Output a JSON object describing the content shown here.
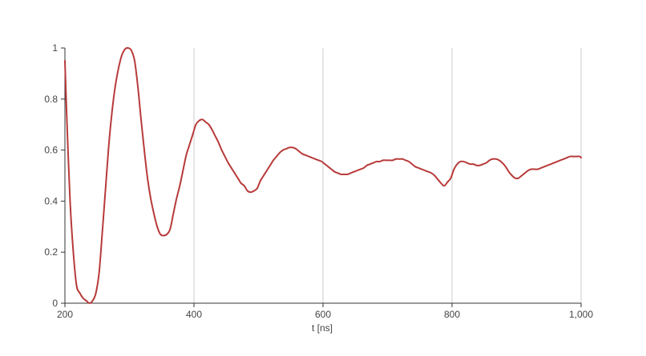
{
  "chart_data": {
    "type": "line",
    "title": "",
    "xlabel": "t [ns]",
    "ylabel": "",
    "xlim": [
      200,
      1000
    ],
    "ylim": [
      0,
      1
    ],
    "x_ticks": [
      200,
      400,
      600,
      800,
      1000
    ],
    "x_tick_labels": [
      "200",
      "400",
      "600",
      "800",
      "1,000"
    ],
    "y_ticks": [
      0,
      0.2,
      0.4,
      0.6,
      0.8,
      1
    ],
    "y_tick_labels": [
      "0",
      "0.2",
      "0.4",
      "0.6",
      "0.8",
      "1"
    ],
    "vertical_grid": true,
    "horizontal_grid": false,
    "line_color": "#b83a3a",
    "grid_color": "#cccccc",
    "axis_color": "#333333",
    "series": [
      {
        "name": "",
        "x": [
          200,
          203,
          208,
          213,
          218,
          223,
          228,
          233,
          238,
          243,
          248,
          253,
          258,
          263,
          268,
          273,
          278,
          283,
          288,
          293,
          298,
          303,
          308,
          313,
          318,
          323,
          328,
          333,
          338,
          343,
          348,
          353,
          358,
          363,
          368,
          373,
          378,
          383,
          388,
          393,
          398,
          403,
          408,
          413,
          418,
          423,
          428,
          433,
          438,
          443,
          448,
          453,
          458,
          463,
          468,
          473,
          478,
          483,
          488,
          493,
          498,
          503,
          508,
          513,
          518,
          523,
          528,
          533,
          538,
          543,
          548,
          553,
          558,
          563,
          568,
          573,
          578,
          583,
          588,
          593,
          598,
          603,
          608,
          613,
          618,
          623,
          628,
          633,
          638,
          643,
          648,
          653,
          658,
          663,
          668,
          673,
          678,
          683,
          688,
          693,
          698,
          703,
          708,
          713,
          718,
          723,
          728,
          733,
          738,
          743,
          748,
          753,
          758,
          763,
          768,
          773,
          778,
          783,
          788,
          793,
          798,
          803,
          808,
          813,
          818,
          823,
          828,
          833,
          838,
          843,
          848,
          853,
          858,
          863,
          868,
          873,
          878,
          883,
          888,
          893,
          898,
          903,
          908,
          913,
          918,
          923,
          928,
          933,
          938,
          943,
          948,
          953,
          958,
          963,
          968,
          973,
          978,
          983,
          988,
          993,
          998,
          1000
        ],
        "y": [
          0.95,
          0.72,
          0.4,
          0.2,
          0.07,
          0.04,
          0.02,
          0.01,
          0.0,
          0.01,
          0.04,
          0.12,
          0.28,
          0.45,
          0.62,
          0.75,
          0.85,
          0.92,
          0.97,
          0.995,
          1.0,
          0.99,
          0.95,
          0.85,
          0.72,
          0.6,
          0.49,
          0.41,
          0.35,
          0.3,
          0.27,
          0.265,
          0.27,
          0.29,
          0.35,
          0.41,
          0.46,
          0.52,
          0.58,
          0.62,
          0.66,
          0.7,
          0.715,
          0.72,
          0.71,
          0.7,
          0.68,
          0.655,
          0.63,
          0.6,
          0.575,
          0.55,
          0.53,
          0.51,
          0.49,
          0.47,
          0.46,
          0.44,
          0.435,
          0.44,
          0.45,
          0.48,
          0.5,
          0.52,
          0.54,
          0.56,
          0.575,
          0.59,
          0.6,
          0.605,
          0.61,
          0.61,
          0.605,
          0.595,
          0.585,
          0.58,
          0.575,
          0.57,
          0.565,
          0.56,
          0.555,
          0.545,
          0.535,
          0.525,
          0.515,
          0.51,
          0.505,
          0.505,
          0.505,
          0.51,
          0.515,
          0.52,
          0.525,
          0.53,
          0.54,
          0.545,
          0.55,
          0.555,
          0.555,
          0.56,
          0.56,
          0.56,
          0.56,
          0.565,
          0.565,
          0.565,
          0.56,
          0.555,
          0.545,
          0.535,
          0.53,
          0.525,
          0.52,
          0.515,
          0.51,
          0.5,
          0.485,
          0.47,
          0.46,
          0.475,
          0.49,
          0.525,
          0.545,
          0.555,
          0.555,
          0.55,
          0.545,
          0.545,
          0.54,
          0.54,
          0.545,
          0.55,
          0.56,
          0.565,
          0.565,
          0.56,
          0.55,
          0.535,
          0.515,
          0.5,
          0.49,
          0.49,
          0.5,
          0.51,
          0.52,
          0.525,
          0.525,
          0.525,
          0.53,
          0.535,
          0.54,
          0.545,
          0.55,
          0.555,
          0.56,
          0.565,
          0.57,
          0.575,
          0.575,
          0.575,
          0.575,
          0.57
        ]
      }
    ]
  }
}
